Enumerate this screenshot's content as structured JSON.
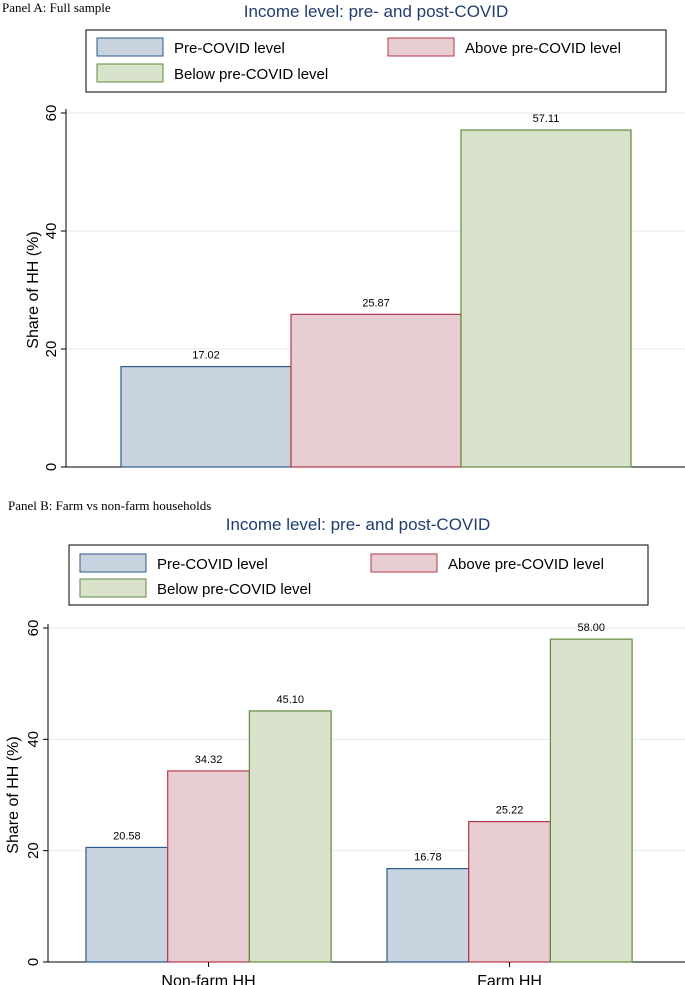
{
  "colors": {
    "title": "#1f3d6e",
    "pre_fill": "#c9d3df",
    "pre_stroke": "#2b5b8a",
    "above_fill": "#e8cdd2",
    "above_stroke": "#b53a48",
    "below_fill": "#d9e3cc",
    "below_stroke": "#5f8a3c",
    "grid": "#e6ecf2",
    "axis": "#000000"
  },
  "legend_labels": [
    "Pre-COVID level",
    "Above pre-COVID level",
    "Below pre-COVID level"
  ],
  "chart_data": [
    {
      "panel_label": "Panel A: Full sample",
      "type": "bar",
      "title": "Income level: pre- and post-COVID",
      "ylabel": "Share of HH (%)",
      "xlabel": "",
      "ylim": [
        0,
        60
      ],
      "yticks": [
        "0",
        "20",
        "40",
        "60"
      ],
      "categories": [
        ""
      ],
      "series": [
        {
          "name": "Pre-COVID level",
          "values": [
            17.02
          ],
          "labels": [
            "17.02"
          ]
        },
        {
          "name": "Above pre-COVID level",
          "values": [
            25.87
          ],
          "labels": [
            "25.87"
          ]
        },
        {
          "name": "Below pre-COVID level",
          "values": [
            57.11
          ],
          "labels": [
            "57.11"
          ]
        }
      ]
    },
    {
      "panel_label": "Panel B: Farm vs non-farm households",
      "type": "bar",
      "title": "Income level: pre- and post-COVID",
      "ylabel": "Share of HH (%)",
      "xlabel": "",
      "ylim": [
        0,
        60
      ],
      "yticks": [
        "0",
        "20",
        "40",
        "60"
      ],
      "categories": [
        "Non-farm HH",
        "Farm HH"
      ],
      "series": [
        {
          "name": "Pre-COVID level",
          "values": [
            20.58,
            16.78
          ],
          "labels": [
            "20.58",
            "16.78"
          ]
        },
        {
          "name": "Above pre-COVID level",
          "values": [
            34.32,
            25.22
          ],
          "labels": [
            "34.32",
            "25.22"
          ]
        },
        {
          "name": "Below pre-COVID level",
          "values": [
            45.1,
            58.0
          ],
          "labels": [
            "45.10",
            "58.00"
          ]
        }
      ]
    }
  ]
}
